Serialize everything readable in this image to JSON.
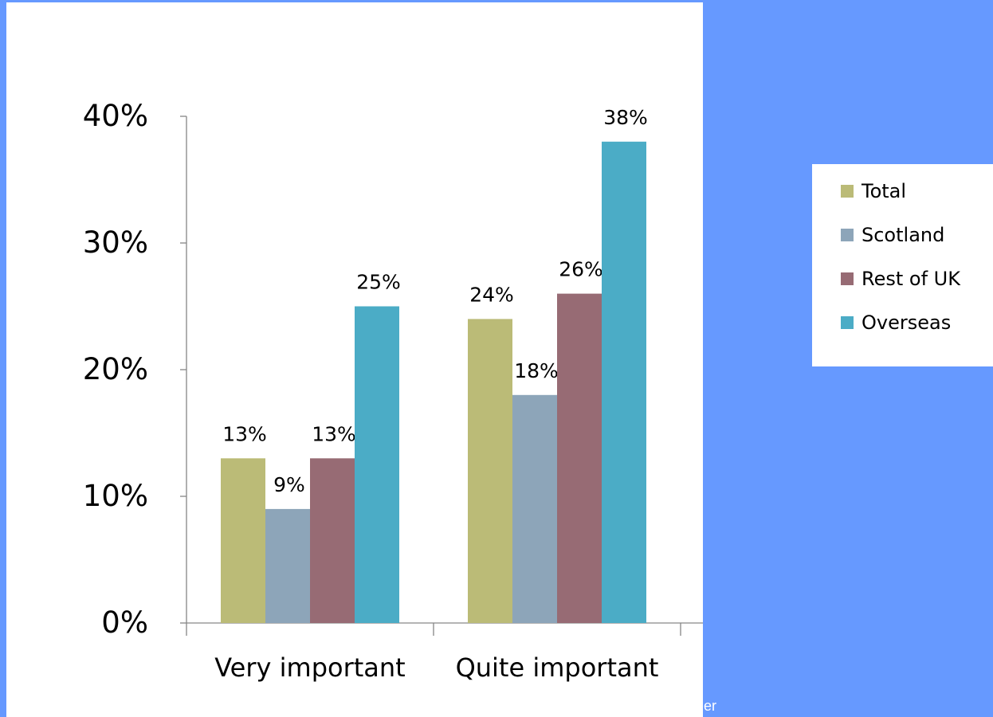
{
  "chart_data": {
    "type": "bar",
    "categories": [
      "Very important",
      "Quite important"
    ],
    "series": [
      {
        "name": "Total",
        "values": [
          13,
          24
        ],
        "labels": [
          "13%",
          "24%"
        ],
        "color": "#bbbb77"
      },
      {
        "name": "Scotland",
        "values": [
          9,
          18
        ],
        "labels": [
          "9%",
          "18%"
        ],
        "color": "#8da5b9"
      },
      {
        "name": "Rest of UK",
        "values": [
          13,
          26
        ],
        "labels": [
          "13%",
          "26%"
        ],
        "color": "#976b74"
      },
      {
        "name": "Overseas",
        "values": [
          25,
          38
        ],
        "labels": [
          "25%",
          "38%"
        ],
        "color": "#4bacc6"
      }
    ],
    "y_ticks": [
      0,
      10,
      20,
      30,
      40
    ],
    "y_tick_labels": [
      "0%",
      "10%",
      "20%",
      "30%",
      "40%"
    ],
    "ylim": [
      0,
      40
    ],
    "grid": false,
    "legend_position": "right"
  },
  "edge_text": "er"
}
